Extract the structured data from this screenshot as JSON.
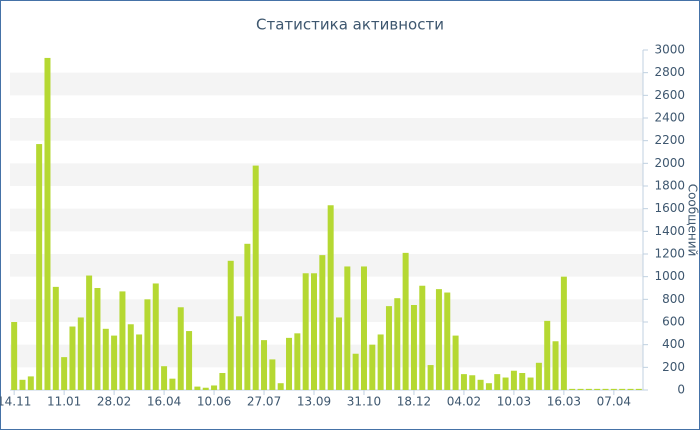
{
  "chart_data": {
    "type": "bar",
    "title": "Статистика активности",
    "y_label": "Сообщений",
    "categories": [
      "14.11",
      null,
      null,
      null,
      null,
      null,
      "11.01",
      null,
      null,
      null,
      null,
      null,
      "28.02",
      null,
      null,
      null,
      null,
      null,
      "16.04",
      null,
      null,
      null,
      null,
      null,
      "10.06",
      null,
      null,
      null,
      null,
      null,
      "27.07",
      null,
      null,
      null,
      null,
      null,
      "13.09",
      null,
      null,
      null,
      null,
      null,
      "31.10",
      null,
      null,
      null,
      null,
      null,
      "18.12",
      null,
      null,
      null,
      null,
      null,
      "04.02",
      null,
      null,
      null,
      null,
      null,
      "10.03",
      null,
      null,
      null,
      null,
      null,
      "16.03",
      null,
      null,
      null,
      null,
      null,
      "07.04",
      null,
      null,
      null
    ],
    "values": [
      600,
      90,
      120,
      2170,
      2930,
      910,
      290,
      560,
      640,
      1010,
      900,
      540,
      480,
      870,
      580,
      490,
      800,
      940,
      210,
      100,
      730,
      520,
      30,
      20,
      40,
      150,
      1140,
      650,
      1290,
      1980,
      440,
      270,
      60,
      460,
      500,
      1030,
      1030,
      1190,
      1630,
      640,
      1090,
      320,
      1090,
      400,
      490,
      740,
      810,
      1210,
      750,
      920,
      220,
      890,
      860,
      480,
      140,
      130,
      90,
      60,
      140,
      110,
      170,
      150,
      110,
      240,
      610,
      430,
      1000,
      10,
      10,
      10,
      10,
      10,
      10,
      10,
      10,
      10
    ],
    "color": "#b5d832",
    "ylim": [
      0,
      3000
    ],
    "yticks": [
      0,
      200,
      400,
      600,
      800,
      1000,
      1200,
      1400,
      1600,
      1800,
      2000,
      2200,
      2400,
      2600,
      2800,
      3000
    ],
    "grid": true
  }
}
